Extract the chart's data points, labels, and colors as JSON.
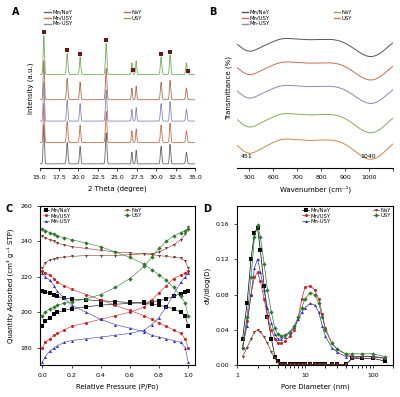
{
  "colors": {
    "MnNaY": "#333333",
    "MnUSY": "#CC2222",
    "MnUSY2": "#4444AA",
    "NaY": "#7B3B2A",
    "USY": "#3A7A3A"
  },
  "xrd": {
    "xlabel": "2 Theta (degree)",
    "ylabel": "Intensity (a.u.)"
  },
  "ir": {
    "xlabel": "Wavenumber (cm⁻¹)",
    "ylabel": "Transmittance (%)"
  },
  "bet": {
    "xlabel": "Relative Pressure (P/Po)",
    "ylabel": "Quantity Adsorbed (cm³ g⁻¹ STP)"
  },
  "pore": {
    "xlabel": "Pore Diameter (nm)",
    "ylabel": "dV/dlog(D)"
  }
}
